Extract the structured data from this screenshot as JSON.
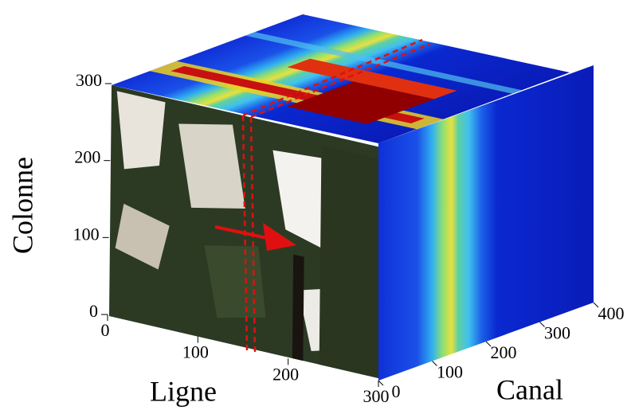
{
  "chart_data": {
    "type": "cube",
    "xlabel": "Ligne",
    "xlim": [
      0,
      300
    ],
    "xticks": [
      0,
      100,
      200,
      300
    ],
    "ylabel": "Colonne",
    "ylim": [
      0,
      300
    ],
    "yticks": [
      0,
      100,
      200,
      300
    ],
    "zlabel": "Canal",
    "zlim": [
      0,
      400
    ],
    "zticks": [
      0,
      100,
      200,
      300,
      400
    ]
  }
}
